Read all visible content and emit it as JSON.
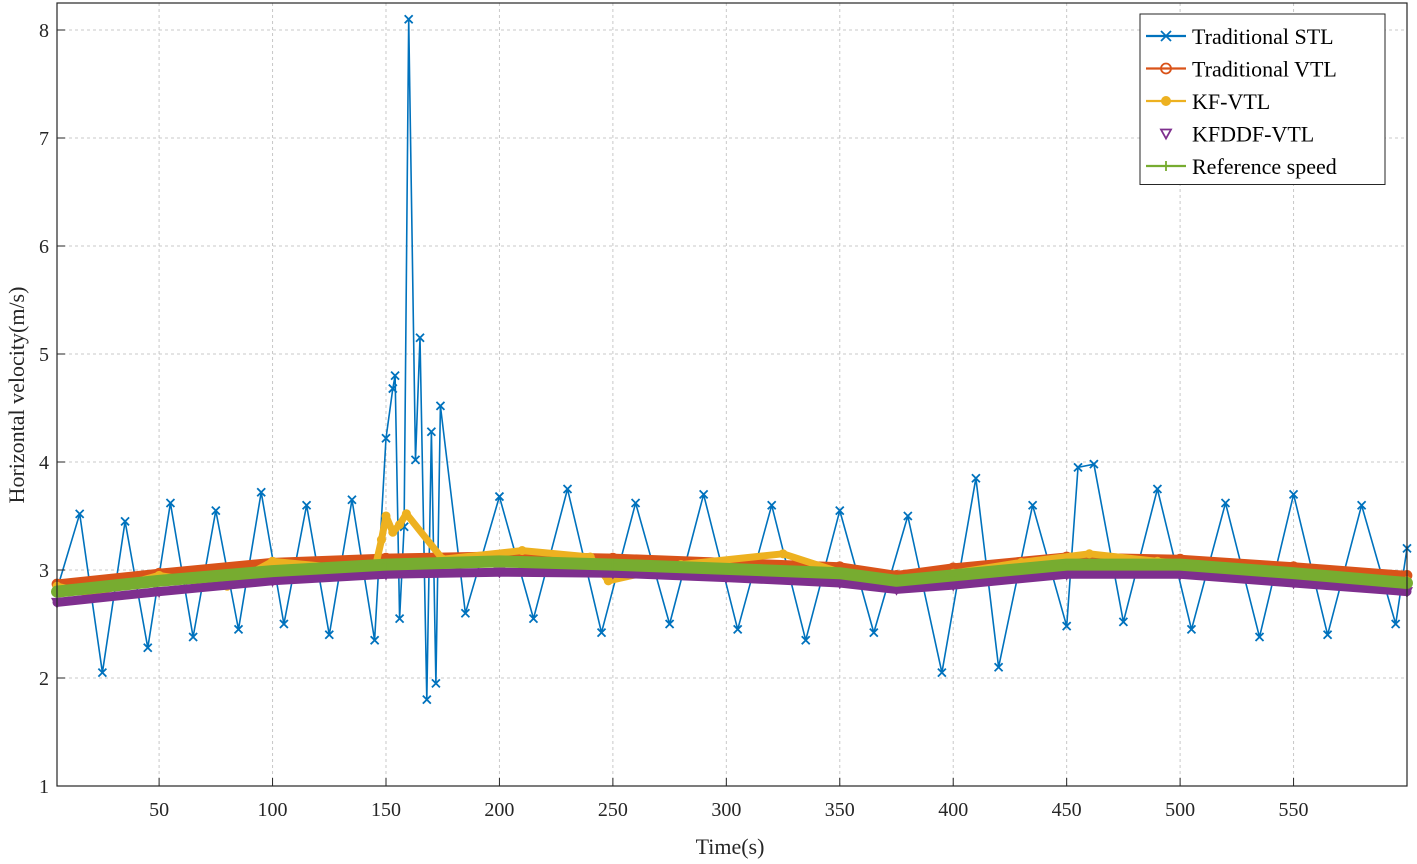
{
  "chart_data": {
    "type": "line",
    "title": "",
    "xlabel": "Time(s)",
    "ylabel": "Horizontal velocity(m/s)",
    "xlim": [
      5,
      600
    ],
    "ylim": [
      1,
      8.25
    ],
    "xticks": [
      50,
      100,
      150,
      200,
      250,
      300,
      350,
      400,
      450,
      500,
      550
    ],
    "yticks": [
      1,
      2,
      3,
      4,
      5,
      6,
      7,
      8
    ],
    "grid": true,
    "legend_position": "top-right",
    "series": [
      {
        "name": "Traditional STL",
        "color": "#0072BD",
        "marker": "x",
        "x": [
          5,
          15,
          25,
          35,
          45,
          55,
          65,
          75,
          85,
          95,
          105,
          115,
          125,
          135,
          145,
          150,
          153,
          154,
          156,
          158,
          160,
          163,
          165,
          168,
          170,
          172,
          174,
          185,
          200,
          215,
          230,
          245,
          260,
          275,
          290,
          305,
          320,
          335,
          350,
          365,
          380,
          395,
          410,
          420,
          435,
          450,
          455,
          462,
          475,
          490,
          505,
          520,
          535,
          550,
          565,
          580,
          595,
          600
        ],
        "y": [
          2.82,
          3.52,
          2.05,
          3.45,
          2.28,
          3.62,
          2.38,
          3.55,
          2.45,
          3.72,
          2.5,
          3.6,
          2.4,
          3.65,
          2.35,
          4.22,
          4.68,
          4.8,
          2.55,
          3.4,
          8.1,
          4.02,
          5.15,
          1.8,
          4.28,
          1.95,
          4.52,
          2.6,
          3.68,
          2.55,
          3.75,
          2.42,
          3.62,
          2.5,
          3.7,
          2.45,
          3.6,
          2.35,
          3.55,
          2.42,
          3.5,
          2.05,
          3.85,
          2.1,
          3.6,
          2.48,
          3.95,
          3.98,
          2.52,
          3.75,
          2.45,
          3.62,
          2.38,
          3.7,
          2.4,
          3.6,
          2.5,
          3.2
        ]
      },
      {
        "name": "Traditional VTL",
        "color": "#D95319",
        "marker": "o",
        "x": [
          5,
          50,
          100,
          150,
          200,
          250,
          300,
          350,
          375,
          400,
          450,
          500,
          550,
          600
        ],
        "y": [
          2.87,
          2.97,
          3.07,
          3.11,
          3.13,
          3.11,
          3.07,
          3.03,
          2.95,
          3.02,
          3.12,
          3.1,
          3.03,
          2.95
        ]
      },
      {
        "name": "KF-VTL",
        "color": "#EDB120",
        "marker": "*",
        "x": [
          5,
          20,
          50,
          80,
          100,
          130,
          145,
          148,
          150,
          153,
          156,
          159,
          175,
          210,
          240,
          248,
          280,
          325,
          350,
          375,
          400,
          430,
          460,
          490,
          520,
          545,
          575,
          600
        ],
        "y": [
          2.85,
          2.78,
          2.95,
          2.85,
          3.08,
          3.02,
          3.0,
          3.28,
          3.5,
          3.35,
          3.42,
          3.52,
          3.1,
          3.18,
          3.12,
          2.9,
          3.05,
          3.15,
          2.98,
          2.87,
          2.97,
          3.07,
          3.15,
          3.08,
          3.03,
          2.96,
          2.88,
          2.9
        ]
      },
      {
        "name": "KFDDF-VTL",
        "color": "#7E2F8E",
        "marker": "v",
        "x": [
          5,
          50,
          100,
          150,
          200,
          250,
          300,
          350,
          375,
          400,
          450,
          500,
          550,
          600
        ],
        "y": [
          2.7,
          2.8,
          2.9,
          2.96,
          2.98,
          2.97,
          2.93,
          2.88,
          2.82,
          2.86,
          2.96,
          2.96,
          2.88,
          2.8
        ]
      },
      {
        "name": "Reference speed",
        "color": "#77AC30",
        "marker": "+",
        "x": [
          5,
          50,
          100,
          150,
          200,
          250,
          300,
          350,
          375,
          400,
          450,
          500,
          550,
          600
        ],
        "y": [
          2.8,
          2.9,
          2.99,
          3.05,
          3.08,
          3.05,
          3.01,
          2.97,
          2.9,
          2.95,
          3.05,
          3.05,
          2.97,
          2.88
        ]
      }
    ]
  }
}
